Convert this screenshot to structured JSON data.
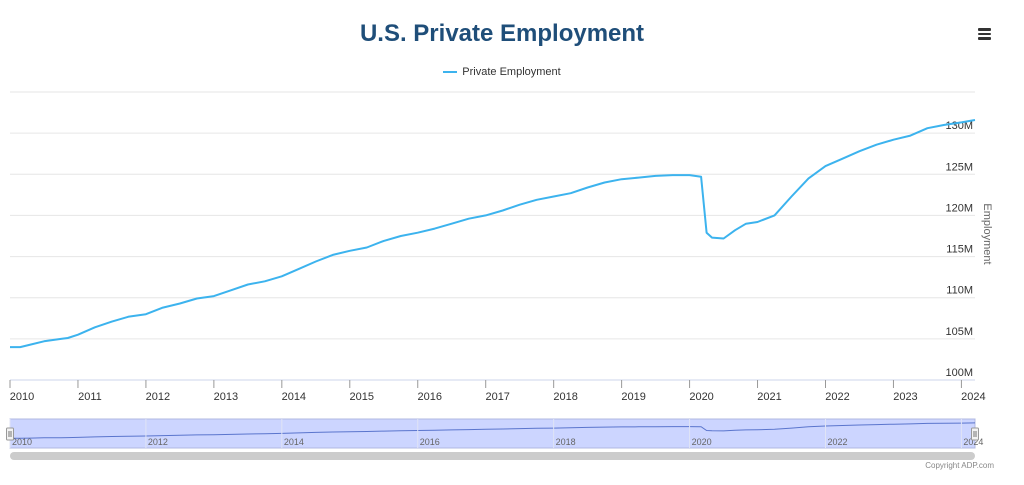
{
  "chart_data": {
    "type": "line",
    "title": "U.S. Private Employment",
    "ylabel": "Employment",
    "xlabel": "",
    "ylim": [
      100,
      135
    ],
    "yticks": [
      100,
      105,
      110,
      115,
      120,
      125,
      130
    ],
    "y_tick_labels": [
      "100M",
      "105M",
      "110M",
      "115M",
      "120M",
      "125M",
      "130M"
    ],
    "xlim": [
      2010,
      2024.2
    ],
    "x_tick_labels": [
      "2010",
      "2011",
      "2012",
      "2013",
      "2014",
      "2015",
      "2016",
      "2017",
      "2018",
      "2019",
      "2020",
      "2021",
      "2022",
      "2023",
      "2024"
    ],
    "navigator_labels": [
      "2010",
      "2012",
      "2014",
      "2016",
      "2018",
      "2020",
      "2022",
      "2024"
    ],
    "series": [
      {
        "name": "Private Employment",
        "color": "#3cb3ee",
        "x": [
          2010.0,
          2010.15,
          2010.3,
          2010.5,
          2010.75,
          2010.85,
          2011.0,
          2011.25,
          2011.5,
          2011.75,
          2012.0,
          2012.25,
          2012.5,
          2012.75,
          2013.0,
          2013.25,
          2013.5,
          2013.75,
          2014.0,
          2014.25,
          2014.5,
          2014.75,
          2015.0,
          2015.25,
          2015.5,
          2015.75,
          2016.0,
          2016.25,
          2016.5,
          2016.75,
          2017.0,
          2017.25,
          2017.5,
          2017.75,
          2018.0,
          2018.25,
          2018.5,
          2018.75,
          2019.0,
          2019.25,
          2019.5,
          2019.75,
          2020.0,
          2020.17,
          2020.25,
          2020.33,
          2020.5,
          2020.67,
          2020.83,
          2021.0,
          2021.25,
          2021.5,
          2021.75,
          2022.0,
          2022.25,
          2022.5,
          2022.75,
          2023.0,
          2023.25,
          2023.5,
          2023.75,
          2024.0,
          2024.2
        ],
        "values": [
          104.0,
          104.0,
          104.3,
          104.7,
          105.0,
          105.1,
          105.5,
          106.4,
          107.1,
          107.7,
          108.0,
          108.8,
          109.3,
          109.9,
          110.2,
          110.9,
          111.6,
          112.0,
          112.6,
          113.5,
          114.4,
          115.2,
          115.7,
          116.1,
          116.9,
          117.5,
          117.9,
          118.4,
          119.0,
          119.6,
          120.0,
          120.6,
          121.3,
          121.9,
          122.3,
          122.7,
          123.4,
          124.0,
          124.4,
          124.6,
          124.8,
          124.9,
          124.9,
          124.7,
          117.9,
          117.3,
          117.2,
          118.2,
          119.0,
          119.2,
          120.0,
          122.3,
          124.5,
          126.0,
          126.9,
          127.8,
          128.6,
          129.2,
          129.7,
          130.6,
          131.0,
          131.3,
          131.6
        ]
      }
    ]
  },
  "legend_label": "Private Employment",
  "copyright": "Copyright ADP.com",
  "menu_icon": "hamburger-menu-icon"
}
